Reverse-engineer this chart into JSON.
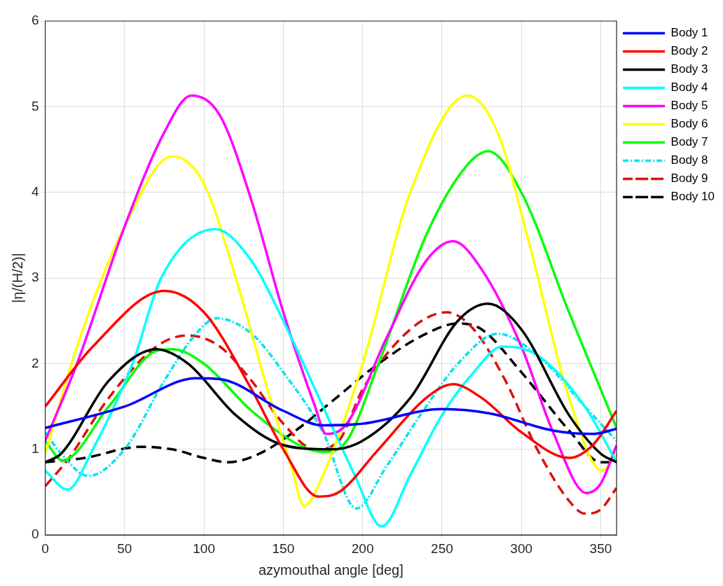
{
  "chart_data": {
    "type": "line",
    "xlabel": "azymouthal angle [deg]",
    "ylabel": "|η/(H/2)|",
    "xlim": [
      0,
      360
    ],
    "xticks": [
      0,
      50,
      100,
      150,
      200,
      250,
      300,
      350
    ],
    "ylim": [
      0,
      6
    ],
    "yticks": [
      0,
      1,
      2,
      3,
      4,
      5,
      6
    ],
    "grid": true,
    "legend": "top right",
    "marker": "none",
    "series": [
      {
        "name": "Body 1",
        "color": "#0000ff",
        "line_style": "solid",
        "x": [
          0,
          50,
          95,
          110,
          150,
          175,
          200,
          250,
          280,
          320,
          345,
          360
        ],
        "values": [
          1.25,
          1.5,
          1.83,
          1.82,
          1.45,
          1.28,
          1.3,
          1.47,
          1.42,
          1.22,
          1.18,
          1.24
        ]
      },
      {
        "name": "Body 2",
        "color": "#ff0000",
        "line_style": "solid",
        "x": [
          0,
          30,
          75,
          100,
          130,
          150,
          172,
          185,
          210,
          240,
          257,
          275,
          300,
          330,
          345,
          360
        ],
        "values": [
          1.5,
          2.2,
          2.85,
          2.6,
          1.7,
          1.0,
          0.45,
          0.5,
          1.0,
          1.6,
          1.76,
          1.6,
          1.2,
          0.9,
          1.05,
          1.45
        ]
      },
      {
        "name": "Body 3",
        "color": "#000000",
        "line_style": "solid",
        "x": [
          0,
          10,
          40,
          70,
          90,
          120,
          150,
          180,
          200,
          230,
          260,
          279,
          300,
          330,
          350,
          360
        ],
        "values": [
          0.85,
          0.95,
          1.8,
          2.17,
          2.0,
          1.4,
          1.05,
          1.0,
          1.1,
          1.6,
          2.5,
          2.7,
          2.4,
          1.4,
          0.95,
          0.85
        ]
      },
      {
        "name": "Body 4",
        "color": "#00ffff",
        "line_style": "solid",
        "x": [
          0,
          14,
          30,
          55,
          73,
          107,
          130,
          150,
          175,
          195,
          212,
          230,
          250,
          270,
          288,
          310,
          340,
          360
        ],
        "values": [
          0.75,
          0.53,
          1.0,
          2.0,
          3.0,
          3.57,
          3.2,
          2.5,
          1.5,
          0.7,
          0.1,
          0.7,
          1.4,
          1.9,
          2.2,
          2.1,
          1.5,
          0.85
        ]
      },
      {
        "name": "Body 5",
        "color": "#ff00ff",
        "line_style": "solid",
        "x": [
          0,
          20,
          50,
          75,
          92,
          110,
          130,
          150,
          170,
          177,
          190,
          215,
          240,
          257,
          275,
          300,
          320,
          341,
          350,
          360
        ],
        "values": [
          1.1,
          2.0,
          3.6,
          4.7,
          5.13,
          4.9,
          3.9,
          2.6,
          1.5,
          1.18,
          1.3,
          2.3,
          3.2,
          3.43,
          3.1,
          2.2,
          1.2,
          0.49,
          0.6,
          1.05
        ]
      },
      {
        "name": "Body 6",
        "color": "#ffff00",
        "line_style": "solid",
        "x": [
          0,
          20,
          50,
          80,
          100,
          120,
          140,
          155,
          163,
          175,
          200,
          230,
          266,
          285,
          305,
          330,
          351,
          360
        ],
        "values": [
          0.95,
          2.2,
          3.6,
          4.42,
          4.1,
          3.0,
          1.7,
          0.8,
          0.34,
          0.7,
          2.0,
          4.0,
          5.13,
          4.7,
          3.4,
          1.6,
          0.75,
          0.95
        ]
      },
      {
        "name": "Body 7",
        "color": "#00ff00",
        "line_style": "solid",
        "x": [
          0,
          11,
          40,
          70,
          80,
          100,
          130,
          160,
          175,
          190,
          210,
          240,
          265,
          279,
          300,
          330,
          360
        ],
        "values": [
          1.1,
          0.87,
          1.5,
          2.15,
          2.17,
          2.0,
          1.45,
          1.05,
          0.97,
          1.1,
          2.0,
          3.5,
          4.3,
          4.48,
          4.0,
          2.6,
          1.25
        ]
      },
      {
        "name": "Body 8",
        "color": "#00e5ee",
        "line_style": "dotted",
        "x": [
          0,
          10,
          27,
          50,
          75,
          95,
          108,
          130,
          150,
          175,
          196,
          215,
          240,
          260,
          285,
          310,
          340,
          360
        ],
        "values": [
          1.2,
          0.95,
          0.69,
          1.0,
          1.8,
          2.35,
          2.53,
          2.35,
          1.9,
          1.2,
          0.31,
          0.8,
          1.5,
          2.0,
          2.35,
          2.1,
          1.5,
          1.1
        ]
      },
      {
        "name": "Body 9",
        "color": "#dd1111",
        "line_style": "dashed",
        "x": [
          0,
          15,
          40,
          70,
          90,
          110,
          130,
          150,
          170,
          185,
          200,
          230,
          253,
          270,
          290,
          310,
          330,
          340,
          350,
          360
        ],
        "values": [
          0.57,
          0.9,
          1.6,
          2.2,
          2.33,
          2.2,
          1.8,
          1.3,
          1.0,
          1.1,
          1.7,
          2.4,
          2.6,
          2.4,
          1.8,
          1.0,
          0.4,
          0.25,
          0.3,
          0.55
        ]
      },
      {
        "name": "Body 10",
        "color": "#000000",
        "line_style": "dashed",
        "x": [
          0,
          25,
          60,
          80,
          100,
          115,
          135,
          160,
          180,
          210,
          240,
          260,
          275,
          300,
          331,
          350,
          360
        ],
        "values": [
          0.85,
          0.9,
          1.03,
          1.0,
          0.9,
          0.85,
          0.95,
          1.25,
          1.55,
          2.0,
          2.35,
          2.47,
          2.4,
          1.9,
          1.2,
          0.85,
          0.85
        ]
      }
    ]
  }
}
